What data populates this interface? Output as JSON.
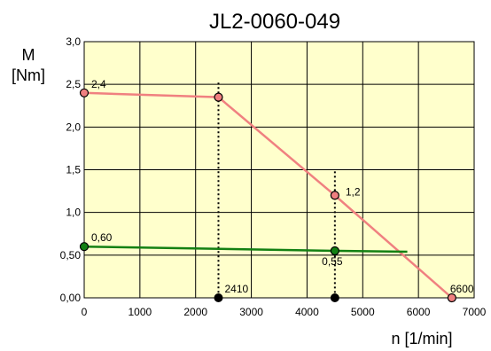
{
  "chart_data": {
    "type": "line",
    "title": "JL2-0060-049",
    "ylabel_line1": "M",
    "ylabel_line2": "[Nm]",
    "xlabel": "n [1/min]",
    "xlim": [
      0,
      7000
    ],
    "ylim": [
      0,
      3.0
    ],
    "grid": true,
    "x_ticks": [
      0,
      1000,
      2000,
      3000,
      4000,
      5000,
      6000,
      7000
    ],
    "y_ticks": [
      0,
      0.5,
      1.0,
      1.5,
      2.0,
      2.5,
      3.0
    ],
    "x_tick_labels": [
      "0",
      "1000",
      "2000",
      "3000",
      "4000",
      "5000",
      "6000",
      "7000"
    ],
    "y_tick_labels": [
      "0,00",
      "0,50",
      "1,0",
      "1,5",
      "2,0",
      "2,5",
      "3,0"
    ],
    "series": [
      {
        "color": "#f08080",
        "points": [
          {
            "x": 0,
            "y": 2.4,
            "marker": true
          },
          {
            "x": 2410,
            "y": 2.35,
            "marker": true
          },
          {
            "x": 4500,
            "y": 1.2,
            "marker": true
          },
          {
            "x": 6600,
            "y": 0.0,
            "marker": true
          }
        ]
      },
      {
        "color": "#138013",
        "points": [
          {
            "x": 0,
            "y": 0.6,
            "marker": true
          },
          {
            "x": 4500,
            "y": 0.55,
            "marker": true
          },
          {
            "x": 5800,
            "y": 0.54,
            "marker": false
          }
        ]
      }
    ],
    "baseline_points": [
      {
        "x": 2410,
        "y": 0
      },
      {
        "x": 4500,
        "y": 0
      }
    ],
    "dotted_verticals": [
      {
        "x": 2410,
        "y_top": 2.52
      },
      {
        "x": 4500,
        "y_top": 1.48
      }
    ],
    "annotations": [
      {
        "text": "2,4",
        "x": 0,
        "y": 2.4
      },
      {
        "text": "1,2",
        "x": 4500,
        "y": 1.2
      },
      {
        "text": "0,60",
        "x": 0,
        "y": 0.6
      },
      {
        "text": "0,55",
        "x": 4500,
        "y": 0.55
      },
      {
        "text": "2410",
        "x": 2410,
        "y": 0
      },
      {
        "text": "6600",
        "x": 6600,
        "y": 0
      }
    ],
    "colors": {
      "plot_background": "#ffffcc",
      "grid": "#000000",
      "marker_baseline": "#000000"
    }
  }
}
